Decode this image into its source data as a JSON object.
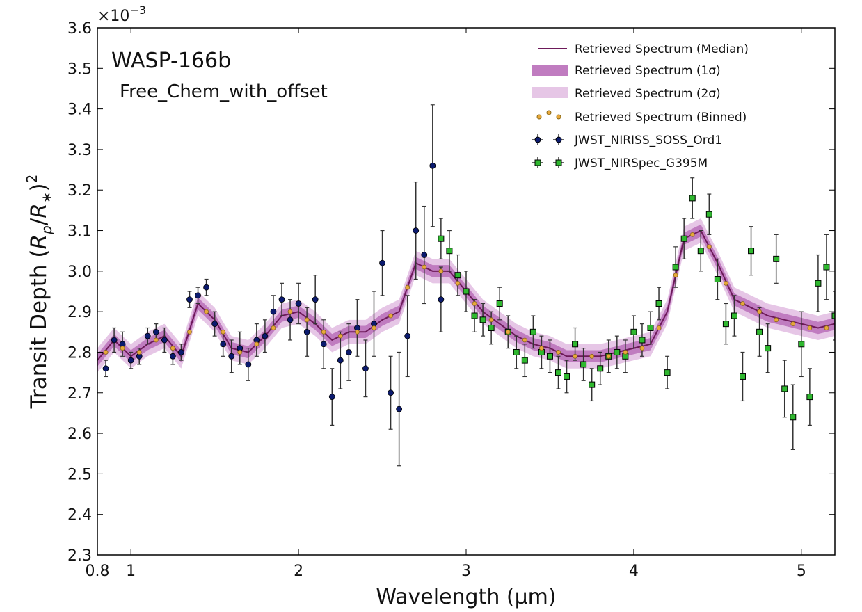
{
  "chart_data": {
    "type": "spectrum",
    "title": "WASP-166b",
    "subtitle": "Free_Chem_with_offset",
    "xlabel": "Wavelength (µm)",
    "ylabel_parts": [
      "Transit Depth (",
      "R",
      "p",
      "/",
      "R",
      "∗",
      ")",
      "2"
    ],
    "y_offset": {
      "base": "×10",
      "exponent": "−3"
    },
    "xlim": [
      0.8,
      5.2
    ],
    "ylim": [
      2.3,
      3.6
    ],
    "xticks": [
      0.8,
      1,
      2,
      3,
      4,
      5
    ],
    "yticks": [
      2.3,
      2.4,
      2.5,
      2.6,
      2.7,
      2.8,
      2.9,
      {
        "value": 3,
        "label": "3.0"
      },
      3.1,
      3.2,
      3.3,
      3.4,
      3.5,
      3.6
    ],
    "model_x": [
      0.8,
      0.9,
      1.0,
      1.1,
      1.2,
      1.3,
      1.4,
      1.5,
      1.6,
      1.7,
      1.8,
      1.9,
      2.0,
      2.1,
      2.2,
      2.3,
      2.4,
      2.5,
      2.6,
      2.7,
      2.8,
      2.9,
      3.0,
      3.1,
      3.2,
      3.3,
      3.4,
      3.5,
      3.6,
      3.7,
      3.8,
      3.9,
      4.0,
      4.1,
      4.2,
      4.3,
      4.4,
      4.5,
      4.6,
      4.7,
      4.8,
      4.9,
      5.0,
      5.1,
      5.2
    ],
    "band_2sigma": {
      "name": "Retrieved Spectrum (2σ)",
      "color": "#e6c6e6",
      "upper": [
        2.81,
        2.86,
        2.82,
        2.85,
        2.87,
        2.82,
        2.95,
        2.91,
        2.84,
        2.83,
        2.87,
        2.92,
        2.93,
        2.9,
        2.86,
        2.88,
        2.88,
        2.91,
        2.93,
        3.05,
        3.03,
        3.03,
        2.98,
        2.93,
        2.9,
        2.87,
        2.85,
        2.84,
        2.82,
        2.82,
        2.82,
        2.83,
        2.84,
        2.85,
        2.93,
        3.11,
        3.13,
        3.05,
        2.96,
        2.94,
        2.92,
        2.91,
        2.9,
        2.89,
        2.9
      ],
      "lower": [
        2.75,
        2.8,
        2.76,
        2.79,
        2.81,
        2.76,
        2.89,
        2.85,
        2.78,
        2.77,
        2.81,
        2.86,
        2.87,
        2.84,
        2.8,
        2.82,
        2.82,
        2.85,
        2.87,
        2.99,
        2.97,
        2.97,
        2.92,
        2.87,
        2.84,
        2.81,
        2.79,
        2.78,
        2.76,
        2.76,
        2.76,
        2.77,
        2.78,
        2.79,
        2.87,
        3.05,
        3.07,
        2.99,
        2.9,
        2.88,
        2.86,
        2.85,
        2.84,
        2.83,
        2.84
      ]
    },
    "band_1sigma": {
      "name": "Retrieved Spectrum (1σ)",
      "color": "#c07cc0",
      "upper": [
        2.795,
        2.845,
        2.805,
        2.835,
        2.855,
        2.805,
        2.935,
        2.895,
        2.825,
        2.815,
        2.855,
        2.905,
        2.915,
        2.885,
        2.845,
        2.865,
        2.865,
        2.895,
        2.915,
        3.035,
        3.015,
        3.015,
        2.965,
        2.915,
        2.885,
        2.855,
        2.835,
        2.825,
        2.805,
        2.805,
        2.805,
        2.815,
        2.825,
        2.835,
        2.915,
        3.095,
        3.115,
        3.035,
        2.945,
        2.925,
        2.905,
        2.895,
        2.885,
        2.875,
        2.885
      ],
      "lower": [
        2.765,
        2.815,
        2.775,
        2.805,
        2.825,
        2.775,
        2.905,
        2.865,
        2.795,
        2.785,
        2.825,
        2.875,
        2.885,
        2.855,
        2.815,
        2.835,
        2.835,
        2.865,
        2.885,
        3.005,
        2.985,
        2.985,
        2.935,
        2.885,
        2.855,
        2.825,
        2.805,
        2.795,
        2.775,
        2.775,
        2.775,
        2.785,
        2.795,
        2.805,
        2.885,
        3.065,
        3.085,
        3.005,
        2.915,
        2.895,
        2.875,
        2.865,
        2.855,
        2.845,
        2.855
      ]
    },
    "median": {
      "name": "Retrieved Spectrum (Median)",
      "color": "#6d1a5a",
      "values": [
        2.78,
        2.83,
        2.79,
        2.82,
        2.84,
        2.79,
        2.92,
        2.88,
        2.81,
        2.8,
        2.84,
        2.89,
        2.9,
        2.87,
        2.83,
        2.85,
        2.85,
        2.88,
        2.9,
        3.02,
        3.0,
        3.0,
        2.95,
        2.9,
        2.87,
        2.84,
        2.82,
        2.81,
        2.79,
        2.79,
        2.79,
        2.8,
        2.81,
        2.82,
        2.9,
        3.08,
        3.1,
        3.02,
        2.93,
        2.91,
        2.89,
        2.88,
        2.87,
        2.86,
        2.87
      ]
    },
    "binned": {
      "name": "Retrieved Spectrum (Binned)",
      "color": "#e8a83a",
      "x": [
        0.85,
        0.95,
        1.05,
        1.15,
        1.25,
        1.35,
        1.45,
        1.55,
        1.65,
        1.75,
        1.85,
        1.95,
        2.05,
        2.15,
        2.25,
        2.35,
        2.45,
        2.55,
        2.65,
        2.75,
        2.85,
        2.95,
        3.05,
        3.15,
        3.25,
        3.35,
        3.45,
        3.55,
        3.65,
        3.75,
        3.85,
        3.95,
        4.05,
        4.15,
        4.25,
        4.35,
        4.45,
        4.55,
        4.65,
        4.75,
        4.85,
        4.95,
        5.05,
        5.15
      ],
      "values": [
        2.8,
        2.81,
        2.8,
        2.83,
        2.81,
        2.85,
        2.9,
        2.85,
        2.8,
        2.82,
        2.86,
        2.9,
        2.88,
        2.85,
        2.84,
        2.85,
        2.86,
        2.89,
        2.96,
        3.01,
        3.0,
        2.97,
        2.92,
        2.88,
        2.85,
        2.83,
        2.81,
        2.8,
        2.79,
        2.79,
        2.79,
        2.8,
        2.81,
        2.86,
        2.99,
        3.09,
        3.06,
        2.97,
        2.92,
        2.9,
        2.88,
        2.87,
        2.86,
        2.86
      ]
    },
    "series": [
      {
        "name": "JWST_NIRISS_SOSS_Ord1",
        "color": "#0b1a6e",
        "marker": "circle",
        "x": [
          0.85,
          0.9,
          0.95,
          1.0,
          1.05,
          1.1,
          1.15,
          1.2,
          1.25,
          1.3,
          1.35,
          1.4,
          1.45,
          1.5,
          1.55,
          1.6,
          1.65,
          1.7,
          1.75,
          1.8,
          1.85,
          1.9,
          1.95,
          2.0,
          2.05,
          2.1,
          2.15,
          2.2,
          2.25,
          2.3,
          2.35,
          2.4,
          2.45,
          2.5,
          2.55,
          2.6,
          2.65,
          2.7,
          2.75,
          2.8,
          2.85
        ],
        "values": [
          2.76,
          2.83,
          2.82,
          2.78,
          2.79,
          2.84,
          2.85,
          2.83,
          2.79,
          2.8,
          2.93,
          2.94,
          2.96,
          2.87,
          2.82,
          2.79,
          2.81,
          2.77,
          2.83,
          2.84,
          2.9,
          2.93,
          2.88,
          2.92,
          2.85,
          2.93,
          2.82,
          2.69,
          2.78,
          2.8,
          2.86,
          2.76,
          2.87,
          3.02,
          2.7,
          2.66,
          2.84,
          3.1,
          3.04,
          3.26,
          2.93
        ],
        "errors": [
          0.02,
          0.03,
          0.03,
          0.02,
          0.02,
          0.02,
          0.02,
          0.03,
          0.02,
          0.02,
          0.02,
          0.02,
          0.02,
          0.03,
          0.03,
          0.04,
          0.04,
          0.04,
          0.04,
          0.04,
          0.04,
          0.04,
          0.05,
          0.05,
          0.06,
          0.06,
          0.06,
          0.07,
          0.07,
          0.07,
          0.07,
          0.07,
          0.08,
          0.08,
          0.09,
          0.14,
          0.1,
          0.12,
          0.12,
          0.15,
          0.08
        ]
      },
      {
        "name": "JWST_NIRSpec_G395M",
        "color": "#2fb82f",
        "marker": "square",
        "x": [
          2.85,
          2.9,
          2.95,
          3.0,
          3.05,
          3.1,
          3.15,
          3.2,
          3.25,
          3.3,
          3.35,
          3.4,
          3.45,
          3.5,
          3.55,
          3.6,
          3.65,
          3.7,
          3.75,
          3.8,
          3.85,
          3.9,
          3.95,
          4.0,
          4.05,
          4.1,
          4.15,
          4.2,
          4.25,
          4.3,
          4.35,
          4.4,
          4.45,
          4.5,
          4.55,
          4.6,
          4.65,
          4.7,
          4.75,
          4.8,
          4.85,
          4.9,
          4.95,
          5.0,
          5.05,
          5.1,
          5.15,
          5.2
        ],
        "values": [
          3.08,
          3.05,
          2.99,
          2.95,
          2.89,
          2.88,
          2.86,
          2.92,
          2.85,
          2.8,
          2.78,
          2.85,
          2.8,
          2.79,
          2.75,
          2.74,
          2.82,
          2.77,
          2.72,
          2.76,
          2.79,
          2.8,
          2.79,
          2.85,
          2.83,
          2.86,
          2.92,
          2.75,
          3.01,
          3.08,
          3.18,
          3.05,
          3.14,
          2.98,
          2.87,
          2.89,
          2.74,
          3.05,
          2.85,
          2.81,
          3.03,
          2.71,
          2.64,
          2.82,
          2.69,
          2.97,
          3.01,
          2.89
        ],
        "errors": [
          0.05,
          0.05,
          0.05,
          0.05,
          0.04,
          0.04,
          0.04,
          0.04,
          0.04,
          0.04,
          0.04,
          0.04,
          0.04,
          0.04,
          0.04,
          0.04,
          0.04,
          0.04,
          0.04,
          0.04,
          0.04,
          0.04,
          0.04,
          0.04,
          0.04,
          0.04,
          0.04,
          0.04,
          0.05,
          0.05,
          0.05,
          0.05,
          0.05,
          0.05,
          0.05,
          0.05,
          0.06,
          0.06,
          0.06,
          0.06,
          0.06,
          0.07,
          0.08,
          0.08,
          0.07,
          0.07,
          0.08,
          0.06
        ]
      }
    ]
  }
}
